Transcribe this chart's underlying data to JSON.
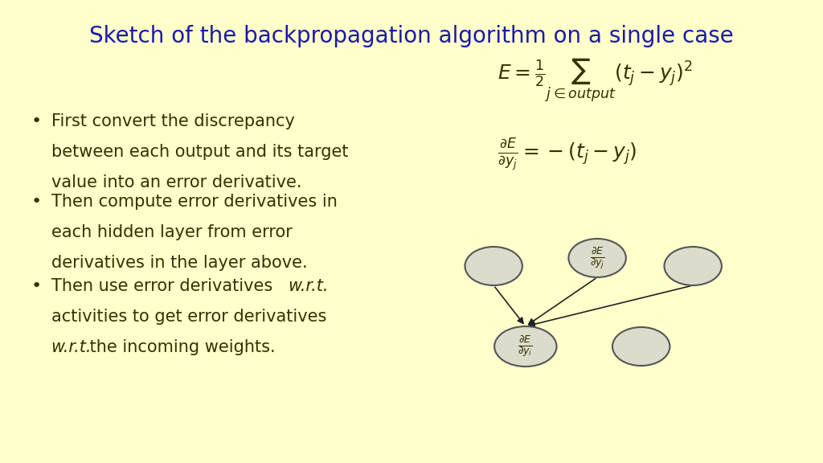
{
  "title": "Sketch of the backpropagation algorithm on a single case",
  "title_color": "#1a1aaa",
  "background_color": "#ffffcc",
  "bullet_points": [
    "First convert the discrepancy\nbetween each output and its target\nvalue into an error derivative.",
    "Then compute error derivatives in\neach hidden layer from error\nderivatives in the layer above.",
    "Then use error derivatives w.r.t.\nactivities to get error derivatives\nw.r.t. the incoming weights."
  ],
  "text_color": "#333300",
  "ellipse_facecolor": "#dcdccc",
  "ellipse_edgecolor": "#555555",
  "arrow_color": "#222222",
  "formula1": "E  = \\frac{1}{2} \\sum_{j \\in output} (t_j - y_j)^2",
  "formula2": "\\frac{\\partial E}{\\partial y_j} = -(t_j - y_j)",
  "label_top": "\\frac{\\partial E}{\\partial y_j}",
  "label_bottom": "\\frac{\\partial E}{\\partial y_i}"
}
